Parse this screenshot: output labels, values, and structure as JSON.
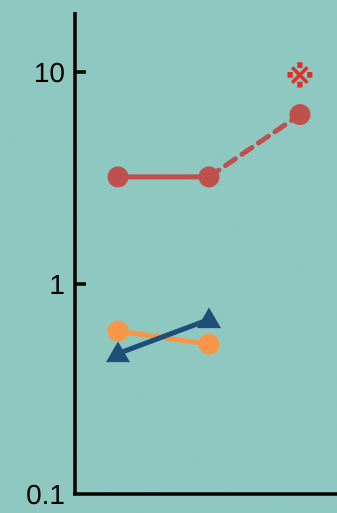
{
  "colors": {
    "background": "#8cc9c1",
    "axis": "#000000",
    "marker_highlight": "#e0302a"
  },
  "chart_data": {
    "type": "line",
    "title": "",
    "xlabel": "",
    "ylabel": "",
    "y_scale": "log",
    "ylim": [
      0.1,
      20
    ],
    "xlim": [
      0.5,
      3.4
    ],
    "y_ticks": [
      {
        "value": 10,
        "label": "10"
      },
      {
        "value": 1,
        "label": "1"
      },
      {
        "value": 0.1,
        "label": "0.1"
      }
    ],
    "grid": false,
    "legend": "none",
    "series": [
      {
        "color": "#c0504d",
        "marker": "circle",
        "points": [
          {
            "x": 1,
            "y": 3.2
          },
          {
            "x": 2,
            "y": 3.2
          }
        ],
        "line": "solid"
      },
      {
        "color": "#c0504d",
        "marker": "circle",
        "points": [
          {
            "x": 2,
            "y": 3.2
          },
          {
            "x": 3,
            "y": 6.3
          }
        ],
        "line": "dashed"
      },
      {
        "color": "#f79646",
        "marker": "circle",
        "points": [
          {
            "x": 1,
            "y": 0.6
          },
          {
            "x": 2,
            "y": 0.52
          }
        ],
        "line": "solid"
      },
      {
        "color": "#1f4e79",
        "marker": "triangle",
        "points": [
          {
            "x": 1,
            "y": 0.47
          },
          {
            "x": 2,
            "y": 0.68
          }
        ],
        "line": "solid"
      }
    ],
    "annotations": [
      {
        "symbol": "※",
        "x": 3,
        "y": 9.5,
        "color": "#e0302a"
      }
    ]
  }
}
